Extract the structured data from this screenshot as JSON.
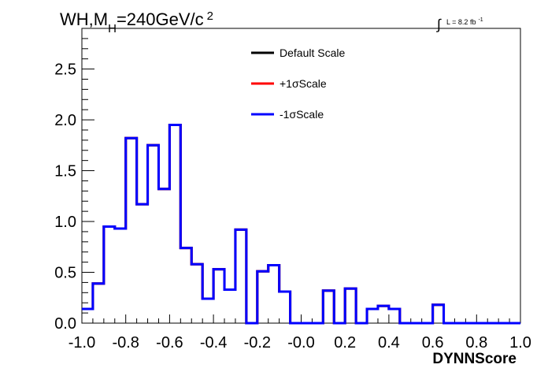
{
  "chart_data": {
    "type": "histogram",
    "title_main": "WH,M",
    "title_sub": "H",
    "title_rest": "=240GeV/c",
    "title_sup": "2",
    "lumi_integral": "∫",
    "lumi_text": "L = 8.2 fb",
    "lumi_sup": "-1",
    "xlabel": "DYNNScore",
    "ylabel": "",
    "xlim": [
      -1.0,
      1.0
    ],
    "ylim": [
      0,
      2.9
    ],
    "x_ticks": [
      -1.0,
      -0.8,
      -0.6,
      -0.4,
      -0.2,
      0.0,
      0.2,
      0.4,
      0.6,
      0.8,
      1.0
    ],
    "x_tick_labels": [
      "-1.0",
      "-0.8",
      "-0.6",
      "-0.4",
      "-0.2",
      "-0.0",
      "0.2",
      "0.4",
      "0.6",
      "0.8",
      "1.0"
    ],
    "y_ticks": [
      0.0,
      0.5,
      1.0,
      1.5,
      2.0,
      2.5
    ],
    "y_tick_labels": [
      "0.0",
      "0.5",
      "1.0",
      "1.5",
      "2.0",
      "2.5"
    ],
    "bin_edges": [
      -1.0,
      -0.95,
      -0.9,
      -0.85,
      -0.8,
      -0.75,
      -0.7,
      -0.65,
      -0.6,
      -0.55,
      -0.5,
      -0.45,
      -0.4,
      -0.35,
      -0.3,
      -0.25,
      -0.2,
      -0.15,
      -0.1,
      -0.05,
      0.0,
      0.05,
      0.1,
      0.15,
      0.2,
      0.25,
      0.3,
      0.35,
      0.4,
      0.45,
      0.5,
      0.55,
      0.6,
      0.65,
      0.7,
      0.75,
      0.8,
      0.85,
      0.9,
      0.95,
      1.0
    ],
    "series": [
      {
        "name": "Default Scale",
        "color": "#000000",
        "values": [
          0.14,
          0.39,
          0.95,
          0.93,
          1.82,
          1.17,
          1.75,
          1.32,
          1.95,
          0.74,
          0.58,
          0.24,
          0.53,
          0.33,
          0.92,
          0.0,
          0.51,
          0.57,
          0.31,
          0.0,
          0.0,
          0.0,
          0.32,
          0.0,
          0.34,
          0.0,
          0.14,
          0.17,
          0.14,
          0.0,
          0.0,
          0.0,
          0.18,
          0.0,
          0.0,
          0.0,
          0.0,
          0.0,
          0.0,
          0.0
        ]
      },
      {
        "name": "+1σScale",
        "color": "#ff0000",
        "values": [
          0.14,
          0.39,
          0.95,
          0.93,
          1.82,
          1.17,
          1.75,
          1.32,
          1.95,
          0.74,
          0.58,
          0.24,
          0.53,
          0.33,
          0.92,
          0.0,
          0.51,
          0.57,
          0.31,
          0.0,
          0.0,
          0.0,
          0.32,
          0.0,
          0.34,
          0.0,
          0.14,
          0.17,
          0.14,
          0.0,
          0.0,
          0.0,
          0.18,
          0.0,
          0.0,
          0.0,
          0.0,
          0.0,
          0.0,
          0.0
        ]
      },
      {
        "name": "-1σScale",
        "color": "#0000ff",
        "values": [
          0.14,
          0.39,
          0.95,
          0.93,
          1.82,
          1.17,
          1.75,
          1.32,
          1.95,
          0.74,
          0.58,
          0.24,
          0.53,
          0.33,
          0.92,
          0.0,
          0.51,
          0.57,
          0.31,
          0.0,
          0.0,
          0.0,
          0.32,
          0.0,
          0.34,
          0.0,
          0.14,
          0.17,
          0.14,
          0.0,
          0.0,
          0.0,
          0.18,
          0.0,
          0.0,
          0.0,
          0.0,
          0.0,
          0.0,
          0.0
        ]
      }
    ],
    "legend_position": "top-center",
    "grid": false
  }
}
